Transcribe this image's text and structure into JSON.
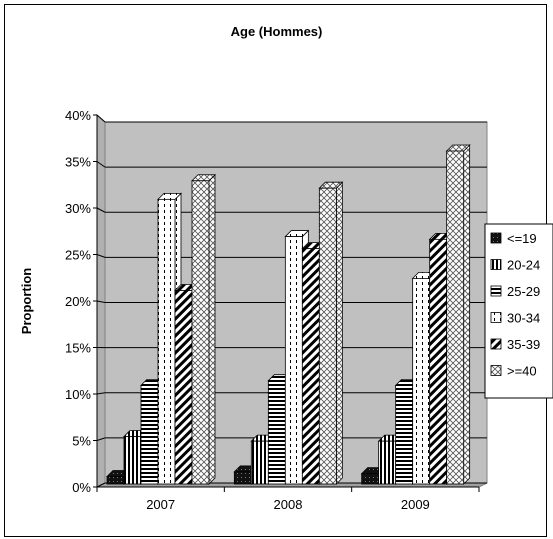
{
  "chart_data": {
    "type": "bar",
    "title": "Age (Hommes)",
    "xlabel": "",
    "ylabel": "Proportion",
    "categories": [
      "2007",
      "2008",
      "2009"
    ],
    "ylim": [
      0,
      40
    ],
    "yticks": [
      "0%",
      "5%",
      "10%",
      "15%",
      "20%",
      "25%",
      "30%",
      "35%",
      "40%"
    ],
    "grid": true,
    "legend_position": "right",
    "plot_background": "#c0c0c0",
    "series": [
      {
        "name": "<=19",
        "values": [
          0.7,
          1.2,
          1.0
        ],
        "pattern": "solid-dark"
      },
      {
        "name": "20-24",
        "values": [
          5.0,
          4.5,
          4.5
        ],
        "pattern": "vertical-stripes"
      },
      {
        "name": "25-29",
        "values": [
          10.5,
          11.0,
          10.5
        ],
        "pattern": "horizontal-stripes"
      },
      {
        "name": "30-34",
        "values": [
          30.5,
          26.5,
          22.0
        ],
        "pattern": "dashed-vertical"
      },
      {
        "name": "35-39",
        "values": [
          20.7,
          25.2,
          26.2
        ],
        "pattern": "diagonal-stripes"
      },
      {
        "name": ">=40",
        "values": [
          32.5,
          31.7,
          35.7
        ],
        "pattern": "crosshatch"
      }
    ]
  }
}
